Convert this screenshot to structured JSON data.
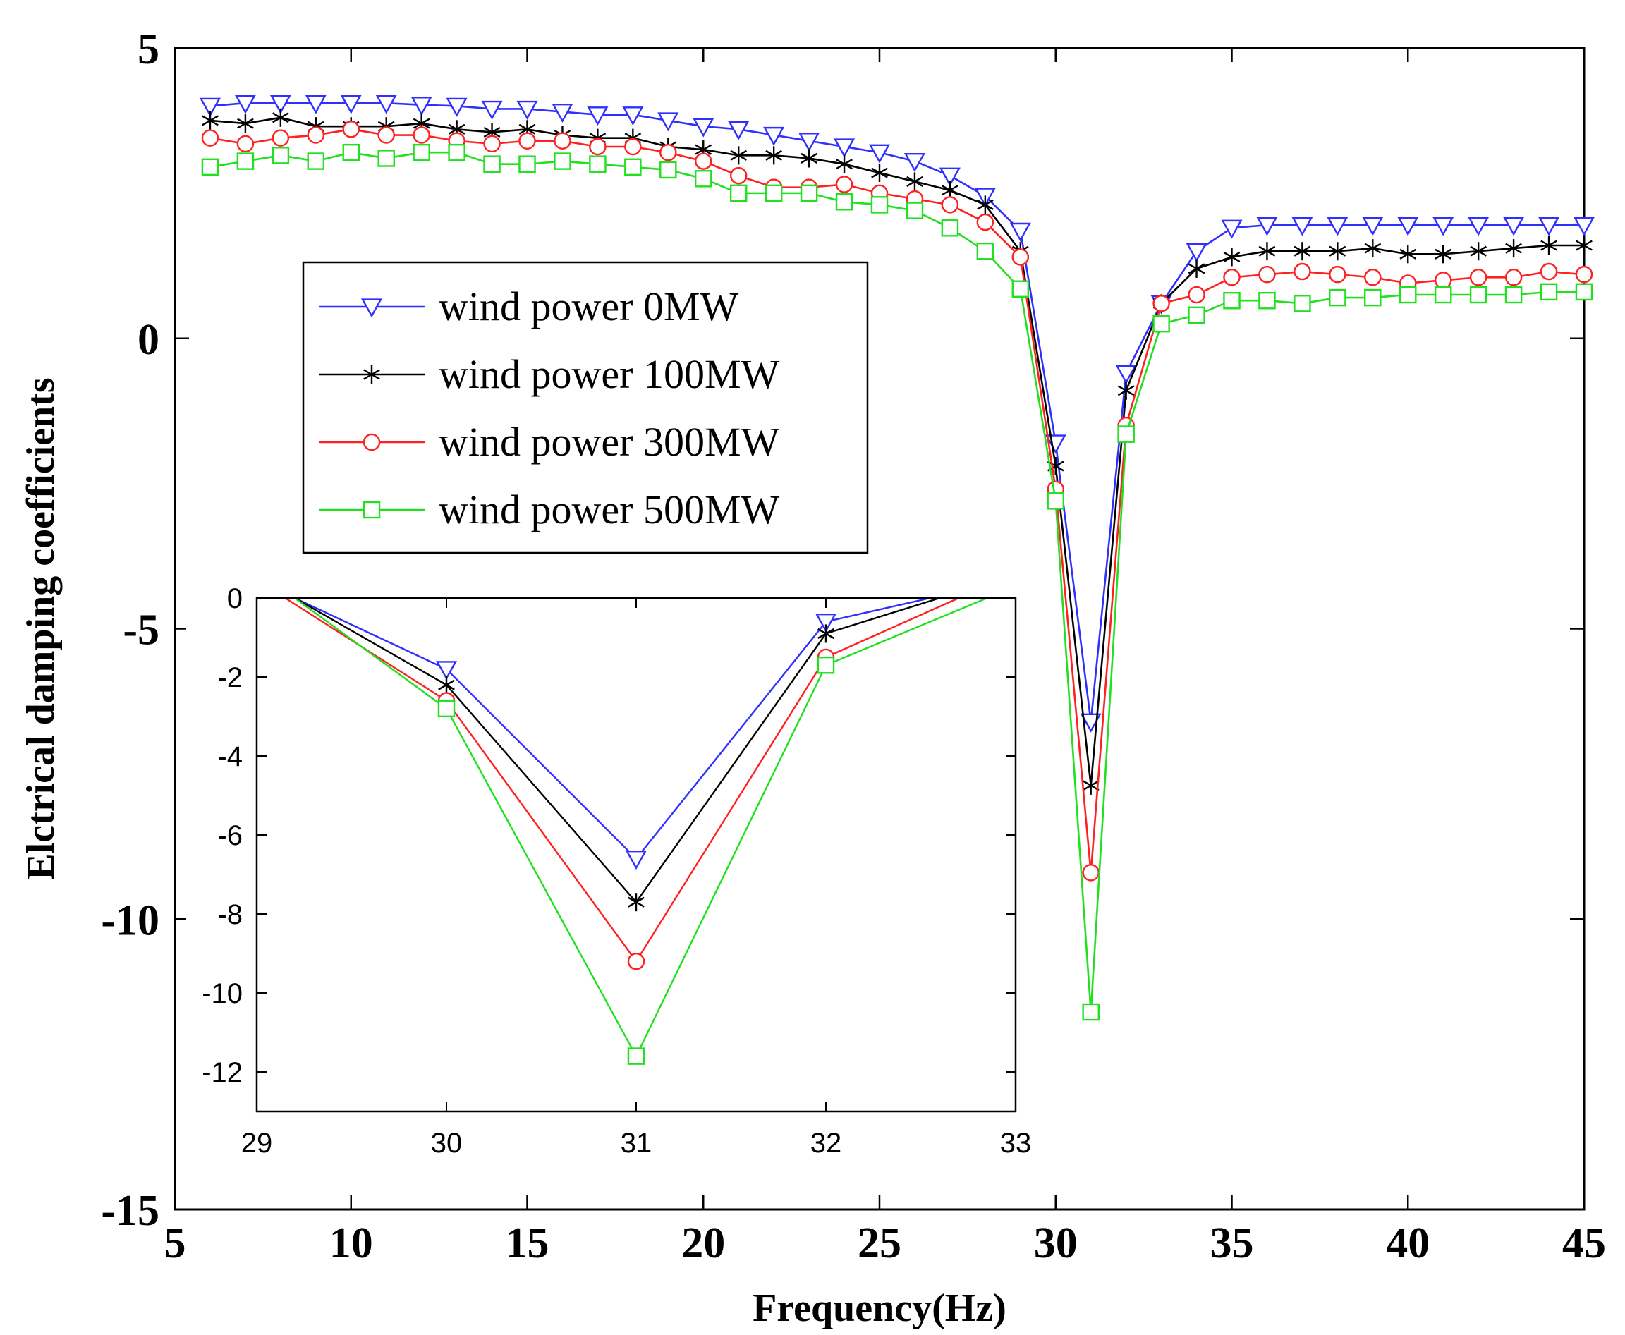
{
  "chart_data": [
    {
      "id": "main",
      "type": "line",
      "title": "",
      "xlabel": "Frequency(Hz)",
      "ylabel": "Elctrical damping coefficients",
      "xlim": [
        5,
        45
      ],
      "ylim": [
        -15,
        5
      ],
      "xticks": [
        5,
        10,
        15,
        20,
        25,
        30,
        35,
        40,
        45
      ],
      "yticks": [
        -15,
        -10,
        -5,
        0,
        5
      ],
      "grid": false,
      "legend_position": "upper-left-center",
      "x": [
        6,
        7,
        8,
        9,
        10,
        11,
        12,
        13,
        14,
        15,
        16,
        17,
        18,
        19,
        20,
        21,
        22,
        23,
        24,
        25,
        26,
        27,
        28,
        29,
        30,
        31,
        32,
        33,
        34,
        35,
        36,
        37,
        38,
        39,
        40,
        41,
        42,
        43,
        44,
        45
      ],
      "series": [
        {
          "name": "wind power 0MW",
          "color": "#2f2fff",
          "marker": "triangle-down",
          "values": [
            4.0,
            4.05,
            4.05,
            4.05,
            4.05,
            4.05,
            4.02,
            4.0,
            3.95,
            3.95,
            3.9,
            3.85,
            3.85,
            3.75,
            3.65,
            3.6,
            3.5,
            3.4,
            3.3,
            3.2,
            3.05,
            2.8,
            2.45,
            1.85,
            -1.8,
            -6.6,
            -0.6,
            0.6,
            1.5,
            1.9,
            1.95,
            1.95,
            1.95,
            1.95,
            1.95,
            1.95,
            1.95,
            1.95,
            1.95,
            1.95
          ]
        },
        {
          "name": "wind power 100MW",
          "color": "#000000",
          "marker": "asterisk",
          "values": [
            3.75,
            3.7,
            3.8,
            3.65,
            3.65,
            3.65,
            3.7,
            3.6,
            3.55,
            3.6,
            3.5,
            3.45,
            3.45,
            3.3,
            3.25,
            3.15,
            3.15,
            3.1,
            3.0,
            2.85,
            2.7,
            2.55,
            2.3,
            1.5,
            -2.2,
            -7.7,
            -0.9,
            0.6,
            1.2,
            1.4,
            1.5,
            1.5,
            1.5,
            1.55,
            1.45,
            1.45,
            1.5,
            1.55,
            1.6,
            1.6
          ]
        },
        {
          "name": "wind power 300MW",
          "color": "#ff2020",
          "marker": "circle",
          "values": [
            3.45,
            3.35,
            3.45,
            3.5,
            3.6,
            3.5,
            3.5,
            3.4,
            3.35,
            3.4,
            3.4,
            3.3,
            3.3,
            3.2,
            3.05,
            2.8,
            2.6,
            2.6,
            2.65,
            2.5,
            2.4,
            2.3,
            2.0,
            1.4,
            -2.6,
            -9.2,
            -1.5,
            0.6,
            0.75,
            1.05,
            1.1,
            1.15,
            1.1,
            1.05,
            0.95,
            1.0,
            1.05,
            1.05,
            1.15,
            1.1
          ]
        },
        {
          "name": "wind power 500MW",
          "color": "#20e020",
          "marker": "square",
          "values": [
            2.95,
            3.05,
            3.15,
            3.05,
            3.2,
            3.1,
            3.2,
            3.2,
            3.0,
            3.0,
            3.05,
            3.0,
            2.95,
            2.9,
            2.75,
            2.5,
            2.5,
            2.5,
            2.35,
            2.3,
            2.2,
            1.9,
            1.5,
            0.85,
            -2.8,
            -11.6,
            -1.65,
            0.25,
            0.4,
            0.65,
            0.65,
            0.6,
            0.7,
            0.7,
            0.75,
            0.75,
            0.75,
            0.75,
            0.8,
            0.8
          ]
        }
      ]
    },
    {
      "id": "inset",
      "type": "line",
      "title": "",
      "xlabel": "",
      "ylabel": "",
      "xlim": [
        29,
        33
      ],
      "ylim": [
        -13,
        0
      ],
      "xticks": [
        29,
        30,
        31,
        32,
        33
      ],
      "yticks": [
        0,
        -2,
        -4,
        -6,
        -8,
        -10,
        -12
      ],
      "grid": false,
      "series": [
        {
          "name": "wind power 0MW",
          "color": "#2f2fff",
          "marker": "triangle-down",
          "x": [
            29.2,
            30,
            31,
            32,
            32.55
          ],
          "values": [
            0,
            -1.8,
            -6.6,
            -0.6,
            0
          ],
          "marker_x": [
            30,
            31,
            32
          ],
          "marker_values": [
            -1.8,
            -6.6,
            -0.6
          ]
        },
        {
          "name": "wind power 100MW",
          "color": "#000000",
          "marker": "asterisk",
          "x": [
            29.2,
            30,
            31,
            32,
            32.6
          ],
          "values": [
            0,
            -2.2,
            -7.7,
            -0.9,
            0
          ],
          "marker_x": [
            30,
            31,
            32
          ],
          "marker_values": [
            -2.2,
            -7.7,
            -0.9
          ]
        },
        {
          "name": "wind power 300MW",
          "color": "#ff2020",
          "marker": "circle",
          "x": [
            29.15,
            30,
            31,
            32,
            32.7
          ],
          "values": [
            0,
            -2.6,
            -9.2,
            -1.5,
            0
          ],
          "marker_x": [
            30,
            31,
            32
          ],
          "marker_values": [
            -2.6,
            -9.2,
            -1.5
          ]
        },
        {
          "name": "wind power 500MW",
          "color": "#20e020",
          "marker": "square",
          "x": [
            29.2,
            30,
            31,
            32,
            32.85
          ],
          "values": [
            0,
            -2.8,
            -11.6,
            -1.7,
            0
          ],
          "marker_x": [
            30,
            31,
            32
          ],
          "marker_values": [
            -2.8,
            -11.6,
            -1.7
          ]
        }
      ]
    }
  ]
}
